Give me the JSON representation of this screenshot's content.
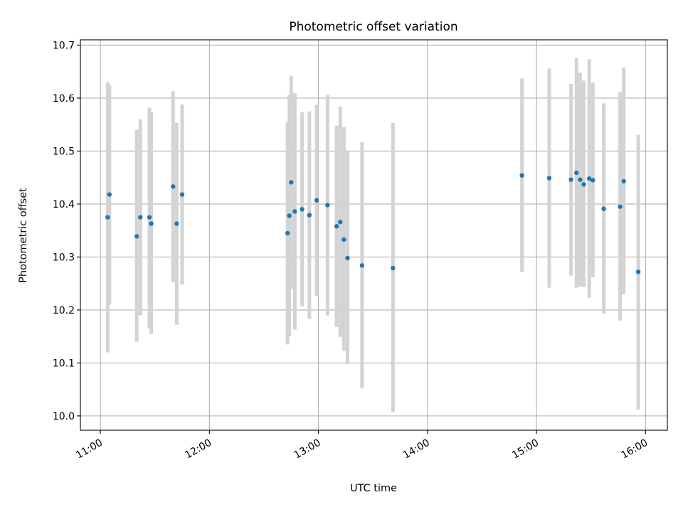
{
  "chart_data": {
    "type": "scatter",
    "title": "Photometric offset variation",
    "xlabel": "UTC time",
    "ylabel": "Photometric offset",
    "x_tick_labels": [
      "11:00",
      "12:00",
      "13:00",
      "14:00",
      "15:00",
      "16:00"
    ],
    "y_tick_labels": [
      "10.0",
      "10.1",
      "10.2",
      "10.3",
      "10.4",
      "10.5",
      "10.6",
      "10.7"
    ],
    "xlim": [
      "10:49",
      "16:12"
    ],
    "ylim": [
      9.973,
      10.71
    ],
    "grid": true,
    "point_color": "#1f77b4",
    "errorbar_color": "#d3d3d3",
    "points": [
      {
        "x": "11:04",
        "y": 10.375,
        "err_low": 10.12,
        "err_high": 10.63
      },
      {
        "x": "11:05",
        "y": 10.418,
        "err_low": 10.21,
        "err_high": 10.625
      },
      {
        "x": "11:20",
        "y": 10.339,
        "err_low": 10.14,
        "err_high": 10.54
      },
      {
        "x": "11:22",
        "y": 10.375,
        "err_low": 10.19,
        "err_high": 10.56
      },
      {
        "x": "11:27",
        "y": 10.375,
        "err_low": 10.165,
        "err_high": 10.582
      },
      {
        "x": "11:28",
        "y": 10.363,
        "err_low": 10.155,
        "err_high": 10.574
      },
      {
        "x": "11:40",
        "y": 10.433,
        "err_low": 10.252,
        "err_high": 10.613
      },
      {
        "x": "11:42",
        "y": 10.363,
        "err_low": 10.172,
        "err_high": 10.553
      },
      {
        "x": "11:45",
        "y": 10.418,
        "err_low": 10.248,
        "err_high": 10.588
      },
      {
        "x": "12:43",
        "y": 10.345,
        "err_low": 10.135,
        "err_high": 10.555
      },
      {
        "x": "12:44",
        "y": 10.378,
        "err_low": 10.15,
        "err_high": 10.606
      },
      {
        "x": "12:45",
        "y": 10.441,
        "err_low": 10.24,
        "err_high": 10.642
      },
      {
        "x": "12:47",
        "y": 10.386,
        "err_low": 10.163,
        "err_high": 10.609
      },
      {
        "x": "12:51",
        "y": 10.39,
        "err_low": 10.207,
        "err_high": 10.573
      },
      {
        "x": "12:55",
        "y": 10.379,
        "err_low": 10.183,
        "err_high": 10.575
      },
      {
        "x": "12:59",
        "y": 10.407,
        "err_low": 10.227,
        "err_high": 10.587
      },
      {
        "x": "13:05",
        "y": 10.398,
        "err_low": 10.19,
        "err_high": 10.606
      },
      {
        "x": "13:10",
        "y": 10.358,
        "err_low": 10.168,
        "err_high": 10.548
      },
      {
        "x": "13:12",
        "y": 10.366,
        "err_low": 10.149,
        "err_high": 10.584
      },
      {
        "x": "13:14",
        "y": 10.333,
        "err_low": 10.123,
        "err_high": 10.545
      },
      {
        "x": "13:16",
        "y": 10.298,
        "err_low": 10.098,
        "err_high": 10.5
      },
      {
        "x": "13:24",
        "y": 10.284,
        "err_low": 10.052,
        "err_high": 10.517
      },
      {
        "x": "13:41",
        "y": 10.279,
        "err_low": 10.007,
        "err_high": 10.553
      },
      {
        "x": "14:52",
        "y": 10.454,
        "err_low": 10.272,
        "err_high": 10.637
      },
      {
        "x": "15:07",
        "y": 10.449,
        "err_low": 10.242,
        "err_high": 10.656
      },
      {
        "x": "15:19",
        "y": 10.446,
        "err_low": 10.265,
        "err_high": 10.627
      },
      {
        "x": "15:22",
        "y": 10.459,
        "err_low": 10.242,
        "err_high": 10.676
      },
      {
        "x": "15:24",
        "y": 10.446,
        "err_low": 10.244,
        "err_high": 10.648
      },
      {
        "x": "15:26",
        "y": 10.437,
        "err_low": 10.243,
        "err_high": 10.633
      },
      {
        "x": "15:29",
        "y": 10.448,
        "err_low": 10.223,
        "err_high": 10.673
      },
      {
        "x": "15:31",
        "y": 10.445,
        "err_low": 10.262,
        "err_high": 10.629
      },
      {
        "x": "15:37",
        "y": 10.391,
        "err_low": 10.193,
        "err_high": 10.59
      },
      {
        "x": "15:46",
        "y": 10.395,
        "err_low": 10.18,
        "err_high": 10.611
      },
      {
        "x": "15:48",
        "y": 10.443,
        "err_low": 10.23,
        "err_high": 10.658
      },
      {
        "x": "15:56",
        "y": 10.272,
        "err_low": 10.012,
        "err_high": 10.531
      }
    ]
  }
}
